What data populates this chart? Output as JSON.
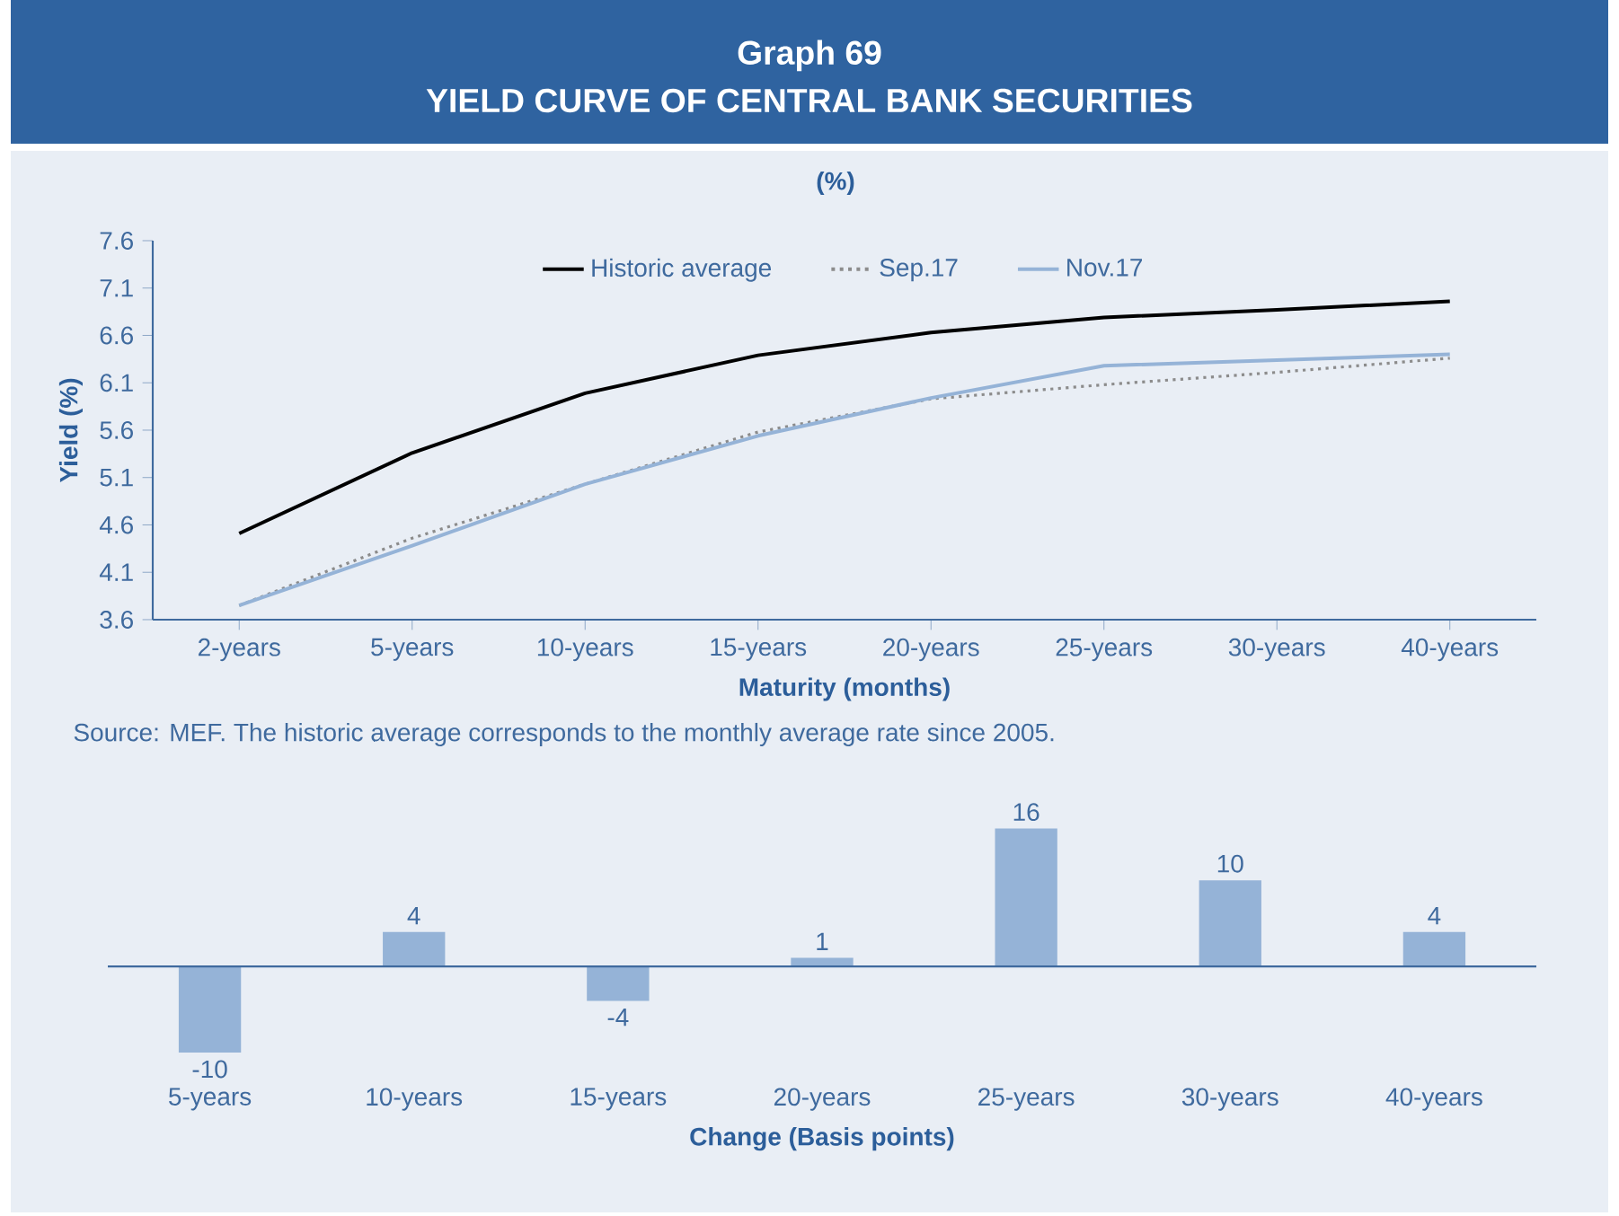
{
  "chart_data": [
    {
      "type": "line",
      "title": "Graph 69",
      "subtitle": "YIELD CURVE OF CENTRAL BANK SECURITIES",
      "annotations": [
        "(%)",
        "Source: MEF. The historic average corresponds to the monthly average rate since 2005."
      ],
      "xlabel": "Maturity (months)",
      "ylabel": "Yield (%)",
      "categories": [
        "2-years",
        "5-years",
        "10-years",
        "15-years",
        "20-years",
        "25-years",
        "30-years",
        "40-years"
      ],
      "ylim": [
        3.6,
        7.6
      ],
      "yticks": [
        3.6,
        4.1,
        4.6,
        5.1,
        5.6,
        6.1,
        6.6,
        7.1,
        7.6
      ],
      "legend": "top",
      "grid": false,
      "series": [
        {
          "name": "Historic average",
          "color": "#000000",
          "line_style": "solid",
          "values": [
            4.51,
            5.36,
            5.99,
            6.39,
            6.63,
            6.79,
            6.87,
            6.96
          ]
        },
        {
          "name": "Sep.17",
          "color": "#8c8c8c",
          "line_style": "dotted",
          "values": [
            3.75,
            4.46,
            5.03,
            5.58,
            5.93,
            6.08,
            6.21,
            6.36
          ]
        },
        {
          "name": "Nov.17",
          "color": "#95b3d7",
          "line_style": "solid",
          "values": [
            3.75,
            4.38,
            5.03,
            5.54,
            5.94,
            6.28,
            6.34,
            6.4
          ]
        }
      ]
    },
    {
      "type": "bar",
      "xlabel": "Change (Basis points)",
      "categories": [
        "5-years",
        "10-years",
        "15-years",
        "20-years",
        "25-years",
        "30-years",
        "40-years"
      ],
      "values": [
        -10,
        4,
        -4,
        1,
        16,
        10,
        4
      ],
      "color": "#95b3d7",
      "data_labels": true,
      "ref_lines": [
        {
          "axis": "y",
          "value": 0,
          "color": "#3f6a9e"
        }
      ]
    }
  ]
}
